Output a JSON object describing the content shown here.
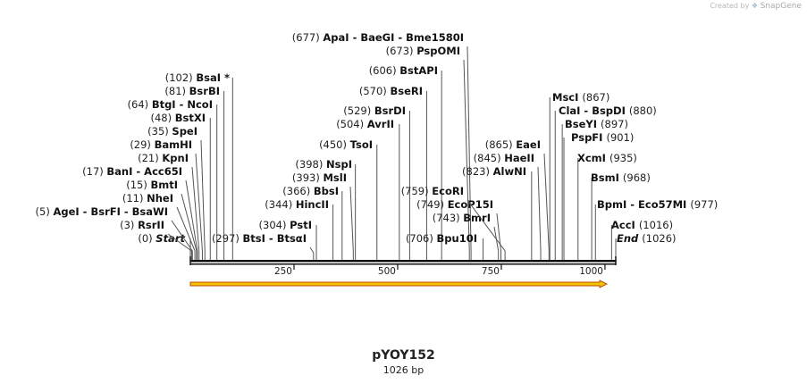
{
  "credit": {
    "prefix": "Created by",
    "brand": "SnapGene"
  },
  "plasmid": {
    "name": "pYOY152",
    "length_label": "1026 bp"
  },
  "ruler": {
    "ticks": [
      250,
      500,
      750,
      1000
    ]
  },
  "colors": {
    "backbone": "#111111",
    "feature_fill": "#f2c300",
    "feature_edge": "#c04a00",
    "line": "#555555"
  },
  "chart_data": {
    "type": "restriction_map",
    "length": 1026,
    "sites": [
      {
        "pos": "(0)",
        "text": "Start",
        "coord": 0,
        "italic": true
      },
      {
        "pos": "(3)",
        "text": "RsrII",
        "coord": 3
      },
      {
        "pos": "(5)",
        "text": "AgeI  -  BsrFI  -  BsaWI",
        "coord": 5
      },
      {
        "pos": "(11)",
        "text": "NheI",
        "coord": 11
      },
      {
        "pos": "(15)",
        "text": "BmtI",
        "coord": 15
      },
      {
        "pos": "(17)",
        "text": "BanI  -  Acc65I",
        "coord": 17
      },
      {
        "pos": "(21)",
        "text": "KpnI",
        "coord": 21
      },
      {
        "pos": "(29)",
        "text": "BamHI",
        "coord": 29
      },
      {
        "pos": "(35)",
        "text": "SpeI",
        "coord": 35
      },
      {
        "pos": "(48)",
        "text": "BstXI",
        "coord": 48
      },
      {
        "pos": "(64)",
        "text": "BtgI  -  NcoI",
        "coord": 64
      },
      {
        "pos": "(81)",
        "text": "BsrBI",
        "coord": 81
      },
      {
        "pos": "(102)",
        "text": "BsaI *",
        "coord": 102
      },
      {
        "pos": "(297)",
        "text": "BtsI  -  BtsαI",
        "coord": 297
      },
      {
        "pos": "(304)",
        "text": "PstI",
        "coord": 304
      },
      {
        "pos": "(344)",
        "text": "HincII",
        "coord": 344
      },
      {
        "pos": "(366)",
        "text": "BbsI",
        "coord": 366
      },
      {
        "pos": "(393)",
        "text": "MslI",
        "coord": 393
      },
      {
        "pos": "(398)",
        "text": "NspI",
        "coord": 398
      },
      {
        "pos": "(450)",
        "text": "TsoI",
        "coord": 450
      },
      {
        "pos": "(504)",
        "text": "AvrII",
        "coord": 504
      },
      {
        "pos": "(529)",
        "text": "BsrDI",
        "coord": 529
      },
      {
        "pos": "(570)",
        "text": "BseRI",
        "coord": 570
      },
      {
        "pos": "(606)",
        "text": "BstAPI",
        "coord": 606
      },
      {
        "pos": "(673)",
        "text": "PspOMI",
        "coord": 673
      },
      {
        "pos": "(677)",
        "text": "ApaI  -  BaeGI  -  Bme1580I",
        "coord": 677
      },
      {
        "pos": "(706)",
        "text": "Bpu10I",
        "coord": 706
      },
      {
        "pos": "(743)",
        "text": "BmrI",
        "coord": 743
      },
      {
        "pos": "(749)",
        "text": "EcoP15I",
        "coord": 749
      },
      {
        "pos": "(759)",
        "text": "EcoRI",
        "coord": 759
      },
      {
        "pos": "(823)",
        "text": "AlwNI",
        "coord": 823
      },
      {
        "pos": "(845)",
        "text": "HaeII",
        "coord": 845
      },
      {
        "pos": "(865)",
        "text": "EaeI",
        "coord": 865
      },
      {
        "pos": "(867)",
        "text": "MscI",
        "coord": 867
      },
      {
        "pos": "(880)",
        "text": "ClaI  -  BspDI",
        "coord": 880
      },
      {
        "pos": "(897)",
        "text": "BseYI",
        "coord": 897
      },
      {
        "pos": "(901)",
        "text": "PspFI",
        "coord": 901
      },
      {
        "pos": "(935)",
        "text": "XcmI",
        "coord": 935
      },
      {
        "pos": "(968)",
        "text": "BsmI",
        "coord": 968
      },
      {
        "pos": "(977)",
        "text": "BpmI  -  Eco57MI",
        "coord": 977
      },
      {
        "pos": "(1016)",
        "text": "AccI",
        "coord": 1016
      },
      {
        "pos": "(1026)",
        "text": "End",
        "coord": 1026,
        "italic": true
      }
    ]
  }
}
